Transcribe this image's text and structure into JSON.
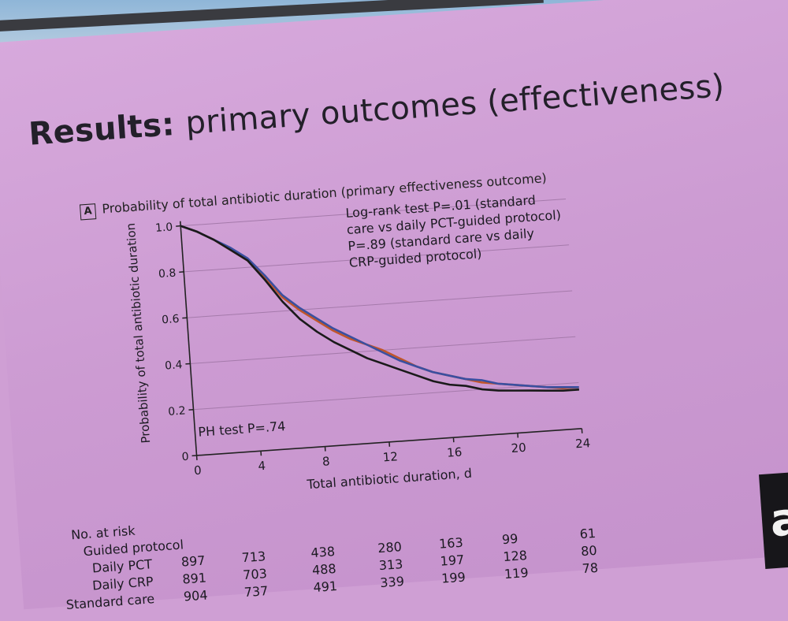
{
  "slide": {
    "title_bold": "Results:",
    "title_rest": "primary outcomes (effectiveness)",
    "panel_letter": "A",
    "panel_title": "Probability of total antibiotic duration (primary effectiveness outcome)",
    "logrank_lines": [
      "Log-rank test P=.01 (standard",
      "care vs daily PCT-guided protocol)",
      "P=.89 (standard care vs daily",
      "CRP-guided protocol)"
    ],
    "ph_test": "PH test P=.74",
    "logo_letter": "a"
  },
  "chart_data": {
    "type": "line",
    "title": "Probability of total antibiotic duration (primary effectiveness outcome)",
    "xlabel": "Total antibiotic duration, d",
    "ylabel": "Probability of total antibiotic duration",
    "xlim": [
      0,
      24
    ],
    "ylim": [
      0,
      1.0
    ],
    "x_ticks": [
      "0",
      "4",
      "8",
      "12",
      "16",
      "20",
      "24"
    ],
    "y_ticks": [
      "0",
      "0.2",
      "0.4",
      "0.6",
      "0.8",
      "1.0"
    ],
    "grid": "horizontal",
    "colors": {
      "pct": "#c0552a",
      "crp": "#3a4fa0",
      "standard": "#1a1a1a"
    },
    "series": [
      {
        "key": "pct",
        "x": [
          0,
          1,
          2,
          3,
          4,
          5,
          6,
          7,
          8,
          9,
          10,
          11,
          12,
          13,
          14,
          15,
          16,
          17,
          18,
          19,
          20,
          21,
          22,
          23,
          24
        ],
        "values": [
          1.0,
          0.97,
          0.93,
          0.88,
          0.83,
          0.75,
          0.66,
          0.6,
          0.55,
          0.5,
          0.46,
          0.43,
          0.4,
          0.36,
          0.32,
          0.29,
          0.27,
          0.25,
          0.23,
          0.22,
          0.21,
          0.2,
          0.19,
          0.18,
          0.18
        ]
      },
      {
        "key": "crp",
        "x": [
          0,
          1,
          2,
          3,
          4,
          5,
          6,
          7,
          8,
          9,
          10,
          11,
          12,
          13,
          14,
          15,
          16,
          17,
          18,
          19,
          20,
          21,
          22,
          23,
          24
        ],
        "values": [
          1.0,
          0.97,
          0.93,
          0.89,
          0.84,
          0.76,
          0.67,
          0.61,
          0.56,
          0.51,
          0.47,
          0.43,
          0.39,
          0.35,
          0.32,
          0.29,
          0.27,
          0.25,
          0.24,
          0.22,
          0.21,
          0.2,
          0.19,
          0.185,
          0.18
        ]
      },
      {
        "key": "standard",
        "x": [
          0,
          1,
          2,
          3,
          4,
          5,
          6,
          7,
          8,
          9,
          10,
          11,
          12,
          13,
          14,
          15,
          16,
          17,
          18,
          19,
          20,
          21,
          22,
          23,
          24
        ],
        "values": [
          1.0,
          0.97,
          0.93,
          0.88,
          0.83,
          0.74,
          0.64,
          0.56,
          0.5,
          0.45,
          0.41,
          0.37,
          0.34,
          0.31,
          0.28,
          0.25,
          0.23,
          0.22,
          0.2,
          0.19,
          0.185,
          0.18,
          0.175,
          0.17,
          0.17
        ]
      }
    ]
  },
  "risk_table": {
    "header": "No. at risk",
    "group_label": "Guided protocol",
    "rows": [
      {
        "label": "Daily PCT",
        "values": [
          "897",
          "713",
          "438",
          "280",
          "163",
          "99",
          "61"
        ]
      },
      {
        "label": "Daily CRP",
        "values": [
          "891",
          "703",
          "488",
          "313",
          "197",
          "128",
          "80"
        ]
      },
      {
        "label": "Standard care",
        "values": [
          "904",
          "737",
          "491",
          "339",
          "199",
          "119",
          "78"
        ]
      }
    ]
  }
}
